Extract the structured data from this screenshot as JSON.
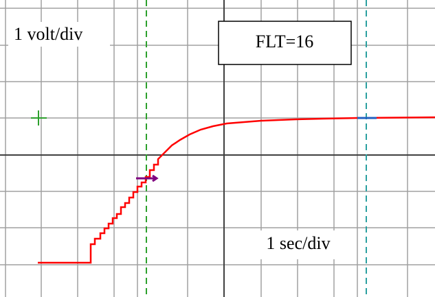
{
  "labels": {
    "volt_div": "1 volt/div",
    "filter": "FLT=16",
    "sec_div": "1 sec/div"
  }
}
